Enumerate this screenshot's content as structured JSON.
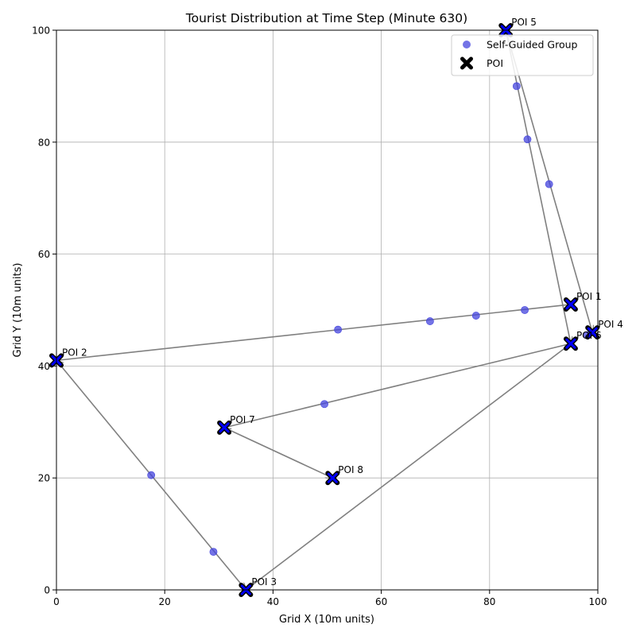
{
  "chart_data": {
    "type": "scatter",
    "title": "Tourist Distribution at Time Step (Minute 630)",
    "xlabel": "Grid X (10m units)",
    "ylabel": "Grid Y (10m units)",
    "xlim": [
      0,
      100
    ],
    "ylim": [
      0,
      100
    ],
    "xticks": [
      0,
      20,
      40,
      60,
      80,
      100
    ],
    "yticks": [
      0,
      20,
      40,
      60,
      80,
      100
    ],
    "grid": true,
    "legend_position": "top-right",
    "legend": [
      {
        "label": "Self-Guided Group",
        "marker": "circle"
      },
      {
        "label": "POI",
        "marker": "x"
      }
    ],
    "colors": {
      "group": "#4444dd",
      "poi_fill": "#0000ff",
      "poi_edge": "#000000",
      "path": "#808080"
    },
    "pois": [
      {
        "name": "POI 1",
        "x": 95,
        "y": 51
      },
      {
        "name": "POI 2",
        "x": 0,
        "y": 41
      },
      {
        "name": "POI 3",
        "x": 35,
        "y": 0
      },
      {
        "name": "POI 4",
        "x": 99,
        "y": 46
      },
      {
        "name": "POI 5",
        "x": 83,
        "y": 100
      },
      {
        "name": "POI 6",
        "x": 95,
        "y": 44
      },
      {
        "name": "POI 7",
        "x": 31,
        "y": 29
      },
      {
        "name": "POI 8",
        "x": 51,
        "y": 20
      }
    ],
    "routes": [
      {
        "from": "POI 5",
        "to": "POI 6"
      },
      {
        "from": "POI 5",
        "to": "POI 4"
      },
      {
        "from": "POI 1",
        "to": "POI 2"
      },
      {
        "from": "POI 2",
        "to": "POI 3"
      },
      {
        "from": "POI 3",
        "to": "POI 6"
      },
      {
        "from": "POI 6",
        "to": "POI 7"
      },
      {
        "from": "POI 7",
        "to": "POI 8"
      }
    ],
    "series": [
      {
        "name": "Self-Guided Group",
        "points": [
          {
            "x": 83,
            "y": 99.5
          },
          {
            "x": 85,
            "y": 90
          },
          {
            "x": 87,
            "y": 80.5
          },
          {
            "x": 91,
            "y": 72.5
          },
          {
            "x": 86.5,
            "y": 50
          },
          {
            "x": 77.5,
            "y": 49
          },
          {
            "x": 69,
            "y": 48
          },
          {
            "x": 52,
            "y": 46.5
          },
          {
            "x": 49.5,
            "y": 33.2
          },
          {
            "x": 17.5,
            "y": 20.5
          },
          {
            "x": 29,
            "y": 6.8
          },
          {
            "x": 98,
            "y": 45.5
          }
        ]
      }
    ]
  }
}
